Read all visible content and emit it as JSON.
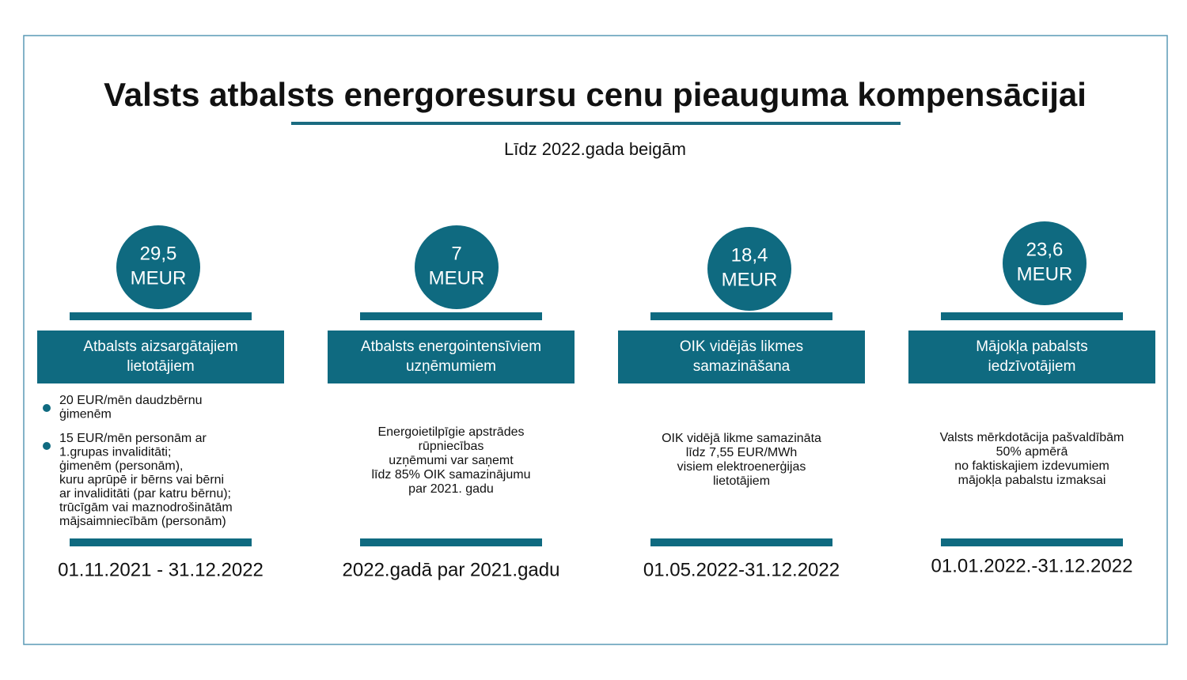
{
  "header": {
    "title": "Valsts atbalsts energoresursu cenu pieauguma kompensācijai",
    "subtitle": "Līdz 2022.gada beigām"
  },
  "columns": [
    {
      "amount": "29,5",
      "unit": "MEUR",
      "heading": [
        "Atbalsts aizsargātajiem",
        "lietotājiem"
      ],
      "bullets": [
        [
          "20 EUR/mēn daudzbērnu",
          "ģimenēm"
        ],
        [
          "15 EUR/mēn personām ar",
          "1.grupas invaliditāti;",
          "ģimenēm (personām),",
          "kuru aprūpē ir bērns vai bērni",
          " ar invaliditāti (par katru bērnu);",
          "trūcīgām vai maznodrošinātām",
          "mājsaimniecībām (personām)"
        ]
      ],
      "period": "01.11.2021 - 31.12.2022"
    },
    {
      "amount": "7",
      "unit": "MEUR",
      "heading": [
        "Atbalsts energointensīviem",
        "uzņēmumiem"
      ],
      "lines": [
        "Energoietilpīgie apstrādes",
        "rūpniecības",
        "uzņēmumi var saņemt",
        "līdz 85% OIK samazinājumu",
        "par 2021. gadu"
      ],
      "period": "2022.gadā par 2021.gadu"
    },
    {
      "amount": "18,4",
      "unit": "MEUR",
      "heading": [
        "OIK vidējās likmes",
        "samazināšana"
      ],
      "lines": [
        "OIK vidējā likme samazināta",
        "līdz 7,55 EUR/MWh",
        "visiem elektroenerģijas",
        "lietotājiem"
      ],
      "period": "01.05.2022-31.12.2022"
    },
    {
      "amount": "23,6",
      "unit": "MEUR",
      "heading": [
        "Mājokļa pabalsts",
        "iedzīvotājiem"
      ],
      "lines": [
        "Valsts mērkdotācija pašvaldībām",
        "50% apmērā",
        "no faktiskajiem izdevumiem",
        "mājokļa pabalstu izmaksai"
      ],
      "period": "01.01.2022.-31.12.2022"
    }
  ]
}
